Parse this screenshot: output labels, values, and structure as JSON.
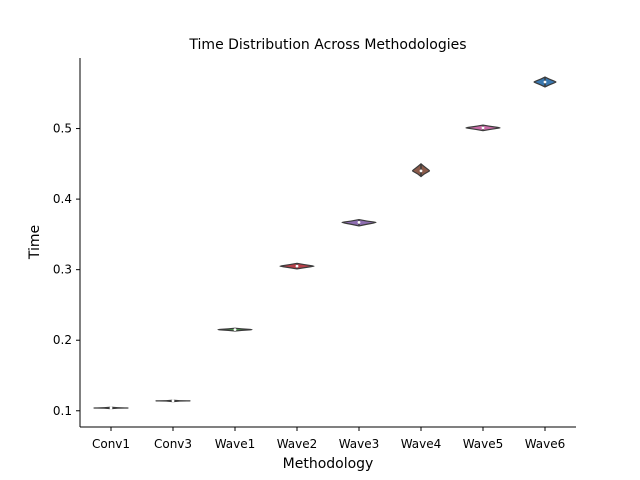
{
  "chart_data": {
    "type": "violin",
    "title": "Time Distribution Across Methodologies",
    "xlabel": "Methodology",
    "ylabel": "Time",
    "categories": [
      "Conv1",
      "Conv3",
      "Wave1",
      "Wave2",
      "Wave3",
      "Wave4",
      "Wave5",
      "Wave6"
    ],
    "series": [
      {
        "category": "Conv1",
        "median": 0.104,
        "min": 0.103,
        "max": 0.105,
        "color": "#3a78b0"
      },
      {
        "category": "Conv3",
        "median": 0.114,
        "min": 0.113,
        "max": 0.115,
        "color": "#c9843a"
      },
      {
        "category": "Wave1",
        "median": 0.215,
        "min": 0.213,
        "max": 0.217,
        "color": "#4d9a4d"
      },
      {
        "category": "Wave2",
        "median": 0.305,
        "min": 0.301,
        "max": 0.309,
        "color": "#b8414a"
      },
      {
        "category": "Wave3",
        "median": 0.367,
        "min": 0.362,
        "max": 0.371,
        "color": "#8d6db0"
      },
      {
        "category": "Wave4",
        "median": 0.44,
        "min": 0.432,
        "max": 0.45,
        "color": "#8a5a4a"
      },
      {
        "category": "Wave5",
        "median": 0.501,
        "min": 0.497,
        "max": 0.505,
        "color": "#c96aa6"
      },
      {
        "category": "Wave6",
        "median": 0.566,
        "min": 0.559,
        "max": 0.573,
        "color": "#3a78b0"
      }
    ],
    "yticks": [
      0.1,
      0.2,
      0.3,
      0.4,
      0.5
    ],
    "ylim": [
      0.077,
      0.6
    ],
    "grid": false,
    "legend": "none"
  }
}
